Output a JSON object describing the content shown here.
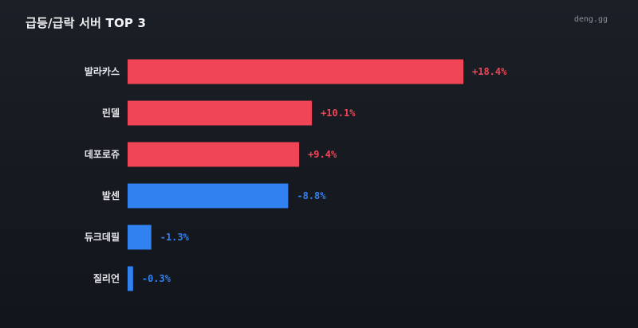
{
  "header": {
    "title": "급등/급락 서버 TOP 3",
    "brand": "deng.gg"
  },
  "colors": {
    "positive": "#ef4556",
    "negative": "#3181f0"
  },
  "chart_data": {
    "type": "bar",
    "orientation": "horizontal",
    "title": "급등/급락 서버 TOP 3",
    "unit": "%",
    "categories": [
      "발라카스",
      "린델",
      "데포로쥬",
      "발센",
      "듀크데필",
      "질리언"
    ],
    "values": [
      18.4,
      10.1,
      9.4,
      -8.8,
      -1.3,
      -0.3
    ],
    "value_labels": [
      "+18.4%",
      "+10.1%",
      "+9.4%",
      "-8.8%",
      "-1.3%",
      "-0.3%"
    ],
    "bar_magnitude_scale": [
      0,
      18.4
    ],
    "grid": false,
    "legend": "none"
  }
}
